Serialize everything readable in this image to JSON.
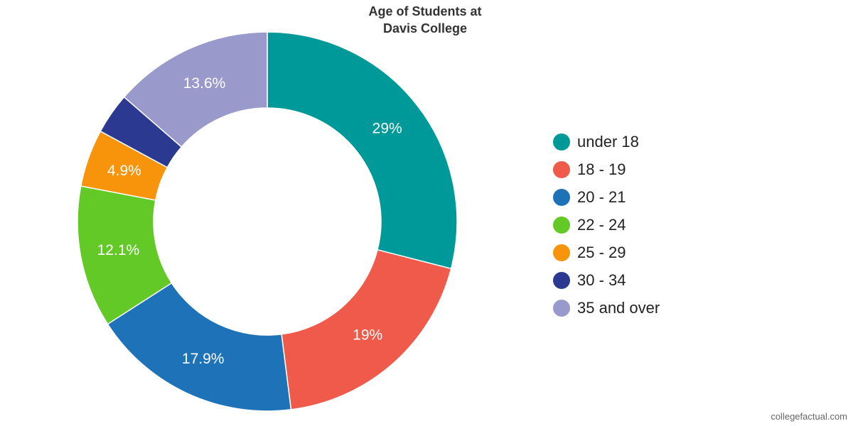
{
  "chart_data": {
    "type": "pie",
    "title_lines": [
      "Age of Students at",
      "Davis College"
    ],
    "categories": [
      "under 18",
      "18 - 19",
      "20 - 21",
      "22 - 24",
      "25 - 29",
      "30 - 34",
      "35 and over"
    ],
    "values": [
      29,
      19,
      17.9,
      12.1,
      4.9,
      3.5,
      13.6
    ],
    "labels": [
      "29%",
      "19%",
      "17.9%",
      "12.1%",
      "4.9%",
      "",
      "13.6%"
    ],
    "colors": [
      "#009999",
      "#f05a4b",
      "#1e73b8",
      "#62c926",
      "#f7940c",
      "#2b3990",
      "#9a99cc"
    ],
    "legend_position": "right"
  },
  "watermark": "collegefactual.com"
}
